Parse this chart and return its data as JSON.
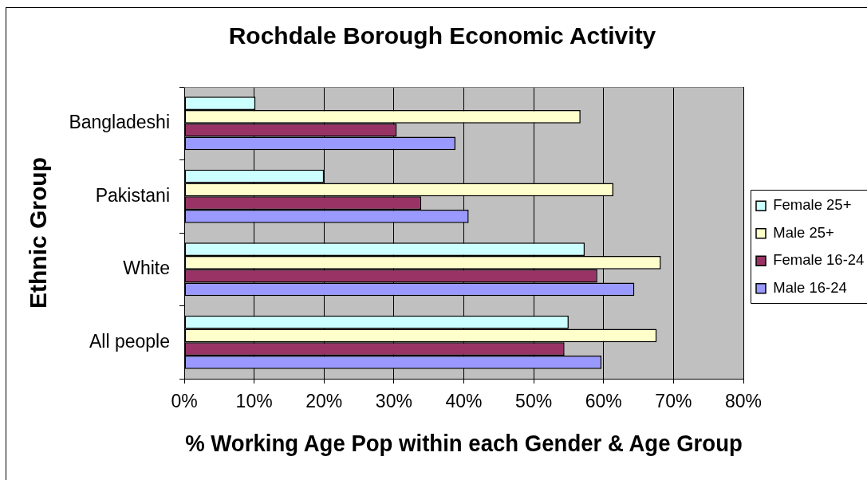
{
  "chart_data": {
    "type": "bar",
    "orientation": "horizontal",
    "title": "Rochdale Borough Economic Activity",
    "xlabel": "% Working Age Pop within each Gender & Age Group",
    "ylabel": "Ethnic Group",
    "categories": [
      "Bangladeshi",
      "Pakistani",
      "White",
      "All people"
    ],
    "series": [
      {
        "name": "Female 25+",
        "color": "#ccffff",
        "values": [
          10.2,
          20.0,
          57.3,
          55.0
        ]
      },
      {
        "name": "Male 25+",
        "color": "#ffffcc",
        "values": [
          56.7,
          61.4,
          68.2,
          67.6
        ]
      },
      {
        "name": "Female 16-24",
        "color": "#993366",
        "values": [
          30.4,
          33.9,
          59.1,
          54.4
        ]
      },
      {
        "name": "Male 16-24",
        "color": "#9999ff",
        "values": [
          38.8,
          40.7,
          64.4,
          59.7
        ]
      }
    ],
    "xlim": [
      0,
      80
    ],
    "xticks": [
      {
        "value": 0,
        "label": "0%"
      },
      {
        "value": 10,
        "label": "10%"
      },
      {
        "value": 20,
        "label": "20%"
      },
      {
        "value": 30,
        "label": "30%"
      },
      {
        "value": 40,
        "label": "40%"
      },
      {
        "value": 50,
        "label": "50%"
      },
      {
        "value": 60,
        "label": "60%"
      },
      {
        "value": 70,
        "label": "70%"
      },
      {
        "value": 80,
        "label": "80%"
      }
    ],
    "grid": "x",
    "legend": "right"
  }
}
